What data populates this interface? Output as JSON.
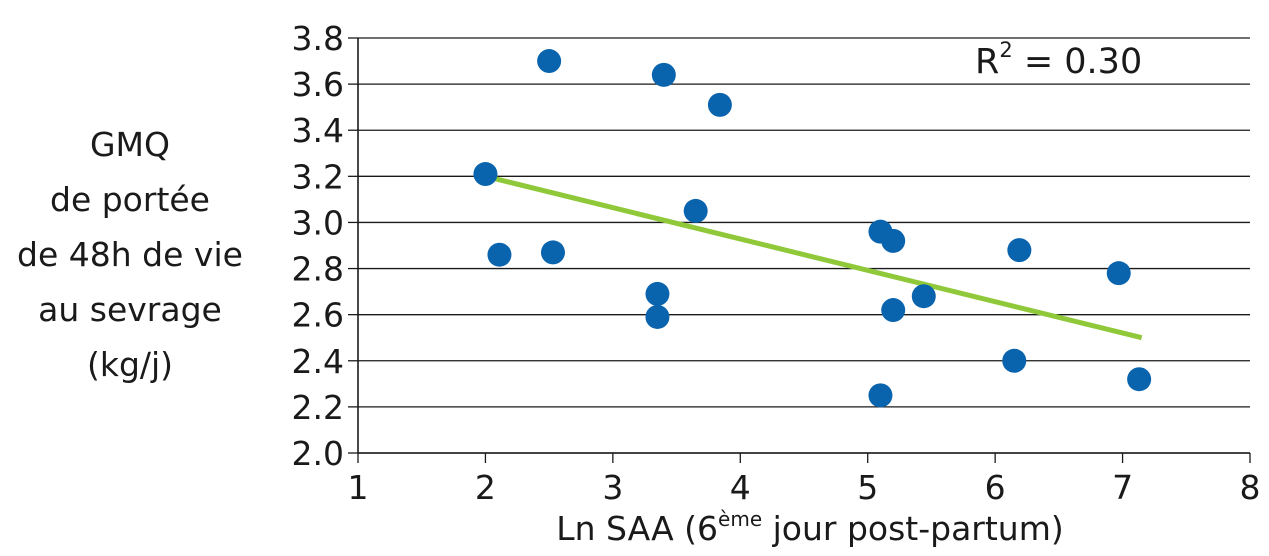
{
  "chart_data": {
    "type": "scatter",
    "ylabel_lines": [
      "GMQ",
      "de portée",
      "de 48h de vie",
      "au sevrage",
      "(kg/j)"
    ],
    "xlabel": {
      "before": "Ln SAA (6",
      "sup": "ème",
      "after": " jour post-partum)"
    },
    "annotation": {
      "base": "R",
      "sup": "2",
      "rest": " = 0.30"
    },
    "xlim": [
      1,
      8
    ],
    "ylim": [
      2.0,
      3.8
    ],
    "x_ticks": [
      1,
      2,
      3,
      4,
      5,
      6,
      7,
      8
    ],
    "y_ticks": [
      "2.0",
      "2.2",
      "2.4",
      "2.6",
      "2.8",
      "3.0",
      "3.2",
      "3.4",
      "3.6",
      "3.8"
    ],
    "grid": "horizontal",
    "point_color": "#0a64ad",
    "trend_color": "#8fc93a",
    "trendline": {
      "x": [
        2.0,
        7.15
      ],
      "y": [
        3.2,
        2.5
      ]
    },
    "points": [
      {
        "x": 2.0,
        "y": 3.21
      },
      {
        "x": 2.11,
        "y": 2.86
      },
      {
        "x": 2.5,
        "y": 3.7
      },
      {
        "x": 2.53,
        "y": 2.87
      },
      {
        "x": 3.35,
        "y": 2.69
      },
      {
        "x": 3.35,
        "y": 2.59
      },
      {
        "x": 3.4,
        "y": 3.64
      },
      {
        "x": 3.65,
        "y": 3.05
      },
      {
        "x": 3.84,
        "y": 3.51
      },
      {
        "x": 5.1,
        "y": 2.96
      },
      {
        "x": 5.1,
        "y": 2.25
      },
      {
        "x": 5.2,
        "y": 2.92
      },
      {
        "x": 5.2,
        "y": 2.62
      },
      {
        "x": 5.44,
        "y": 2.68
      },
      {
        "x": 6.15,
        "y": 2.4
      },
      {
        "x": 6.19,
        "y": 2.88
      },
      {
        "x": 6.97,
        "y": 2.78
      },
      {
        "x": 7.13,
        "y": 2.32
      }
    ]
  }
}
